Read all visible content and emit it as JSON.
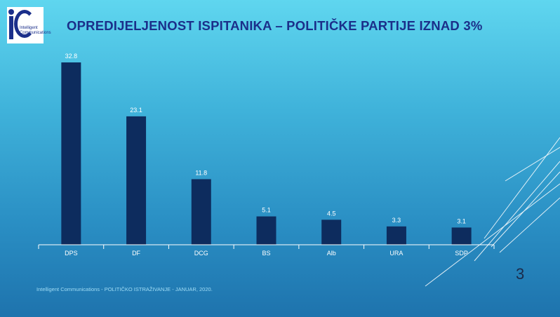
{
  "logo": {
    "text": "Intelligent Communications"
  },
  "title": "OPREDIJELJENOST ISPITANIKA – POLITIČKE PARTIJE IZNAD 3%",
  "page_number": "3",
  "footer": "Intelligent Communications - POLITIČKO ISTRAŽIVANJE - JANUAR, 2020.",
  "colors": {
    "bar": "#0d2c5e",
    "title": "#1b2f8a",
    "axis": "#ffffff",
    "label": "#ffffff"
  },
  "chart_data": {
    "type": "bar",
    "categories": [
      "DPS",
      "DF",
      "DCG",
      "BS",
      "Alb",
      "URA",
      "SDP"
    ],
    "values": [
      32.8,
      23.1,
      11.8,
      5.1,
      4.5,
      3.3,
      3.1
    ],
    "title": "",
    "xlabel": "",
    "ylabel": "",
    "ylim": [
      0,
      32.8
    ],
    "grid": false,
    "legend": "none"
  }
}
